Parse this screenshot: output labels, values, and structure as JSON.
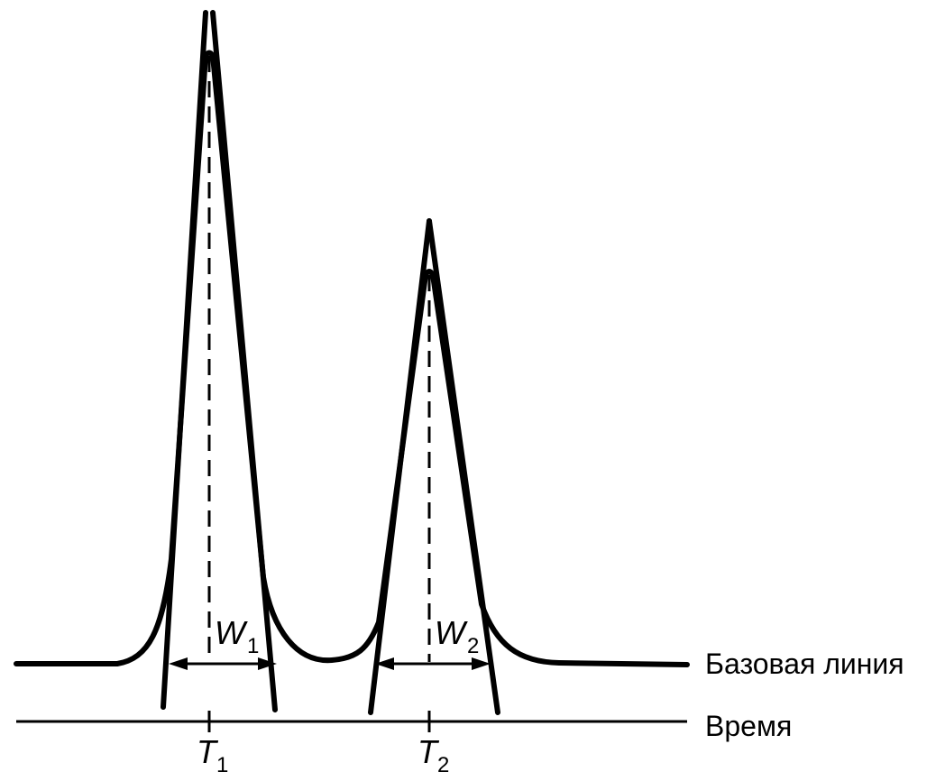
{
  "labels": {
    "baseline": "Базовая линия",
    "time": "Время",
    "t1_main": "T",
    "t1_sub": "1",
    "t2_main": "T",
    "t2_sub": "2",
    "w1_main": "W",
    "w1_sub": "1",
    "w2_main": "W",
    "w2_sub": "2"
  },
  "colors": {
    "stroke": "#000000",
    "background": "#ffffff"
  }
}
